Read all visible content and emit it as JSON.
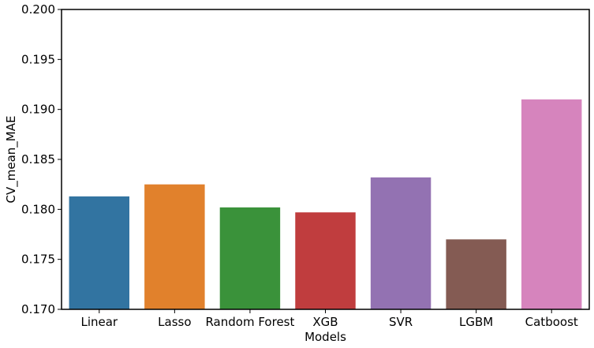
{
  "chart_data": {
    "type": "bar",
    "title": "",
    "xlabel": "Models",
    "ylabel": "CV_mean_MAE",
    "ylim": [
      0.17,
      0.2
    ],
    "yticks": [
      0.17,
      0.175,
      0.18,
      0.185,
      0.19,
      0.195,
      0.2
    ],
    "ytick_labels": [
      "0.170",
      "0.175",
      "0.180",
      "0.185",
      "0.190",
      "0.195",
      "0.200"
    ],
    "grid": false,
    "categories": [
      "Linear",
      "Lasso",
      "Random Forest",
      "XGB",
      "SVR",
      "LGBM",
      "Catboost"
    ],
    "values": [
      0.1813,
      0.1825,
      0.1802,
      0.1797,
      0.1832,
      0.177,
      0.191
    ],
    "colors": [
      "#3274a1",
      "#e1812c",
      "#3a923a",
      "#c03d3e",
      "#9372b2",
      "#845b53",
      "#d684bd"
    ]
  }
}
